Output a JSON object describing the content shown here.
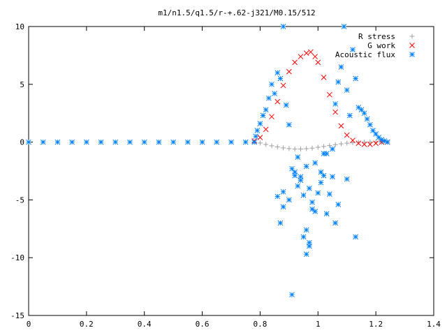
{
  "chart_data": {
    "type": "scatter",
    "title": "m1/n1.5/q1.5/r-+.62-j321/M0.15/512",
    "xlabel": "",
    "ylabel": "",
    "xlim": [
      0,
      1.4
    ],
    "ylim": [
      -15,
      10
    ],
    "x_ticks": [
      "0",
      "0.2",
      "0.4",
      "0.6",
      "0.8",
      "1",
      "1.2",
      "1.4"
    ],
    "y_ticks": [
      "10",
      "5",
      "0",
      "-5",
      "-10",
      "-15"
    ],
    "legend_position": "top-right",
    "grid": false,
    "series": [
      {
        "name": "R stress",
        "marker": "plus",
        "color": "#a0a0a0",
        "x": [
          0.78,
          0.8,
          0.82,
          0.84,
          0.86,
          0.88,
          0.9,
          0.92,
          0.94,
          0.96,
          0.98,
          1.0,
          1.02,
          1.04,
          1.06,
          1.08,
          1.1,
          1.12,
          1.14,
          1.16,
          1.18,
          1.2,
          1.22,
          1.24
        ],
        "y": [
          0.0,
          -0.08,
          -0.2,
          -0.32,
          -0.42,
          -0.5,
          -0.56,
          -0.6,
          -0.6,
          -0.57,
          -0.52,
          -0.45,
          -0.38,
          -0.3,
          -0.22,
          -0.15,
          -0.09,
          -0.05,
          -0.02,
          0.0,
          0.01,
          0.01,
          0.0,
          0.0
        ]
      },
      {
        "name": "G work",
        "marker": "cross",
        "color": "#ff0000",
        "x": [
          0.78,
          0.8,
          0.82,
          0.84,
          0.86,
          0.88,
          0.9,
          0.92,
          0.94,
          0.96,
          0.975,
          0.99,
          1.0,
          1.02,
          1.04,
          1.06,
          1.08,
          1.1,
          1.12,
          1.14,
          1.16,
          1.18,
          1.2,
          1.22,
          1.24
        ],
        "y": [
          0.1,
          0.4,
          1.1,
          2.2,
          3.5,
          4.9,
          6.1,
          6.9,
          7.4,
          7.7,
          7.8,
          7.4,
          6.9,
          5.6,
          4.1,
          2.6,
          1.4,
          0.6,
          0.15,
          -0.1,
          -0.2,
          -0.2,
          -0.1,
          0.0,
          0.0
        ]
      },
      {
        "name": "Acoustic flux",
        "marker": "star",
        "color": "#0080ff",
        "x": [
          0.0,
          0.05,
          0.1,
          0.15,
          0.2,
          0.25,
          0.3,
          0.35,
          0.4,
          0.45,
          0.5,
          0.55,
          0.6,
          0.65,
          0.7,
          0.75,
          0.78,
          0.785,
          0.79,
          0.8,
          0.81,
          0.82,
          0.83,
          0.84,
          0.85,
          0.86,
          0.87,
          0.88,
          0.89,
          0.9,
          0.91,
          0.92,
          0.93,
          0.94,
          0.95,
          0.96,
          0.97,
          0.98,
          0.99,
          1.0,
          1.01,
          1.02,
          1.03,
          1.04,
          1.05,
          1.06,
          1.07,
          1.08,
          1.09,
          1.1,
          1.11,
          1.12,
          1.13,
          1.14,
          1.15,
          1.16,
          1.17,
          1.18,
          1.19,
          1.2,
          1.21,
          1.22,
          1.23,
          1.24,
          0.88,
          0.9,
          0.91,
          0.97,
          0.97,
          1.02,
          1.06,
          1.1,
          0.87,
          0.92,
          0.95,
          0.93,
          0.96,
          1.03,
          1.07,
          0.88,
          0.99,
          1.01,
          1.05,
          0.94,
          0.86,
          0.98,
          0.96,
          1.13
        ],
        "y": [
          0.0,
          0.0,
          0.0,
          0.0,
          0.0,
          0.0,
          0.0,
          0.0,
          0.0,
          0.0,
          0.0,
          0.0,
          0.0,
          0.0,
          0.0,
          0.0,
          0.0,
          0.5,
          1.0,
          1.6,
          2.3,
          2.8,
          3.8,
          5.0,
          4.2,
          6.0,
          5.5,
          10.0,
          3.2,
          1.5,
          -2.3,
          -2.6,
          -1.3,
          -3.0,
          -4.6,
          -2.1,
          -4.0,
          -5.2,
          -6.0,
          -4.4,
          -3.5,
          -2.9,
          -1.0,
          -4.5,
          -3.0,
          3.3,
          5.2,
          6.5,
          10.0,
          4.5,
          2.3,
          8.0,
          5.5,
          3.0,
          2.8,
          2.5,
          2.0,
          1.5,
          1.0,
          0.7,
          0.4,
          0.2,
          0.1,
          0.0,
          -4.3,
          -5.0,
          -13.2,
          -9.0,
          -8.7,
          -1.0,
          -7.0,
          -3.2,
          -7.0,
          -2.9,
          -8.2,
          -3.8,
          -7.6,
          -6.2,
          -5.4,
          -5.6,
          -1.8,
          -2.6,
          -0.6,
          -3.3,
          -4.7,
          -5.8,
          -9.7,
          -8.2
        ]
      }
    ]
  }
}
